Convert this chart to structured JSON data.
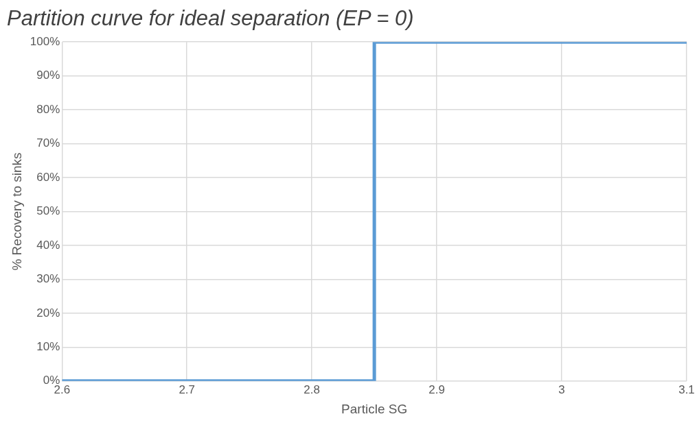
{
  "chart_data": {
    "type": "line",
    "title": "Partition curve for ideal separation (EP = 0)",
    "xlabel": "Particle SG",
    "ylabel": "% Recovery to sinks",
    "x": [
      2.6,
      2.85,
      2.85,
      3.1
    ],
    "series": [
      {
        "color": "#5b9bd5",
        "values": [
          0,
          0,
          100,
          100
        ]
      }
    ],
    "xlim": [
      2.6,
      3.1
    ],
    "xticks": [
      2.6,
      2.7,
      2.8,
      2.9,
      3,
      3.1
    ],
    "ylim": [
      0,
      100
    ],
    "yticks": [
      {
        "value": 0,
        "label": "0%"
      },
      {
        "value": 10,
        "label": "10%"
      },
      {
        "value": 20,
        "label": "20%"
      },
      {
        "value": 30,
        "label": "30%"
      },
      {
        "value": 40,
        "label": "40%"
      },
      {
        "value": 50,
        "label": "50%"
      },
      {
        "value": 60,
        "label": "60%"
      },
      {
        "value": 70,
        "label": "70%"
      },
      {
        "value": 80,
        "label": "80%"
      },
      {
        "value": 90,
        "label": "90%"
      },
      {
        "value": 100,
        "label": "100%"
      }
    ],
    "grid": true,
    "legend": false
  }
}
